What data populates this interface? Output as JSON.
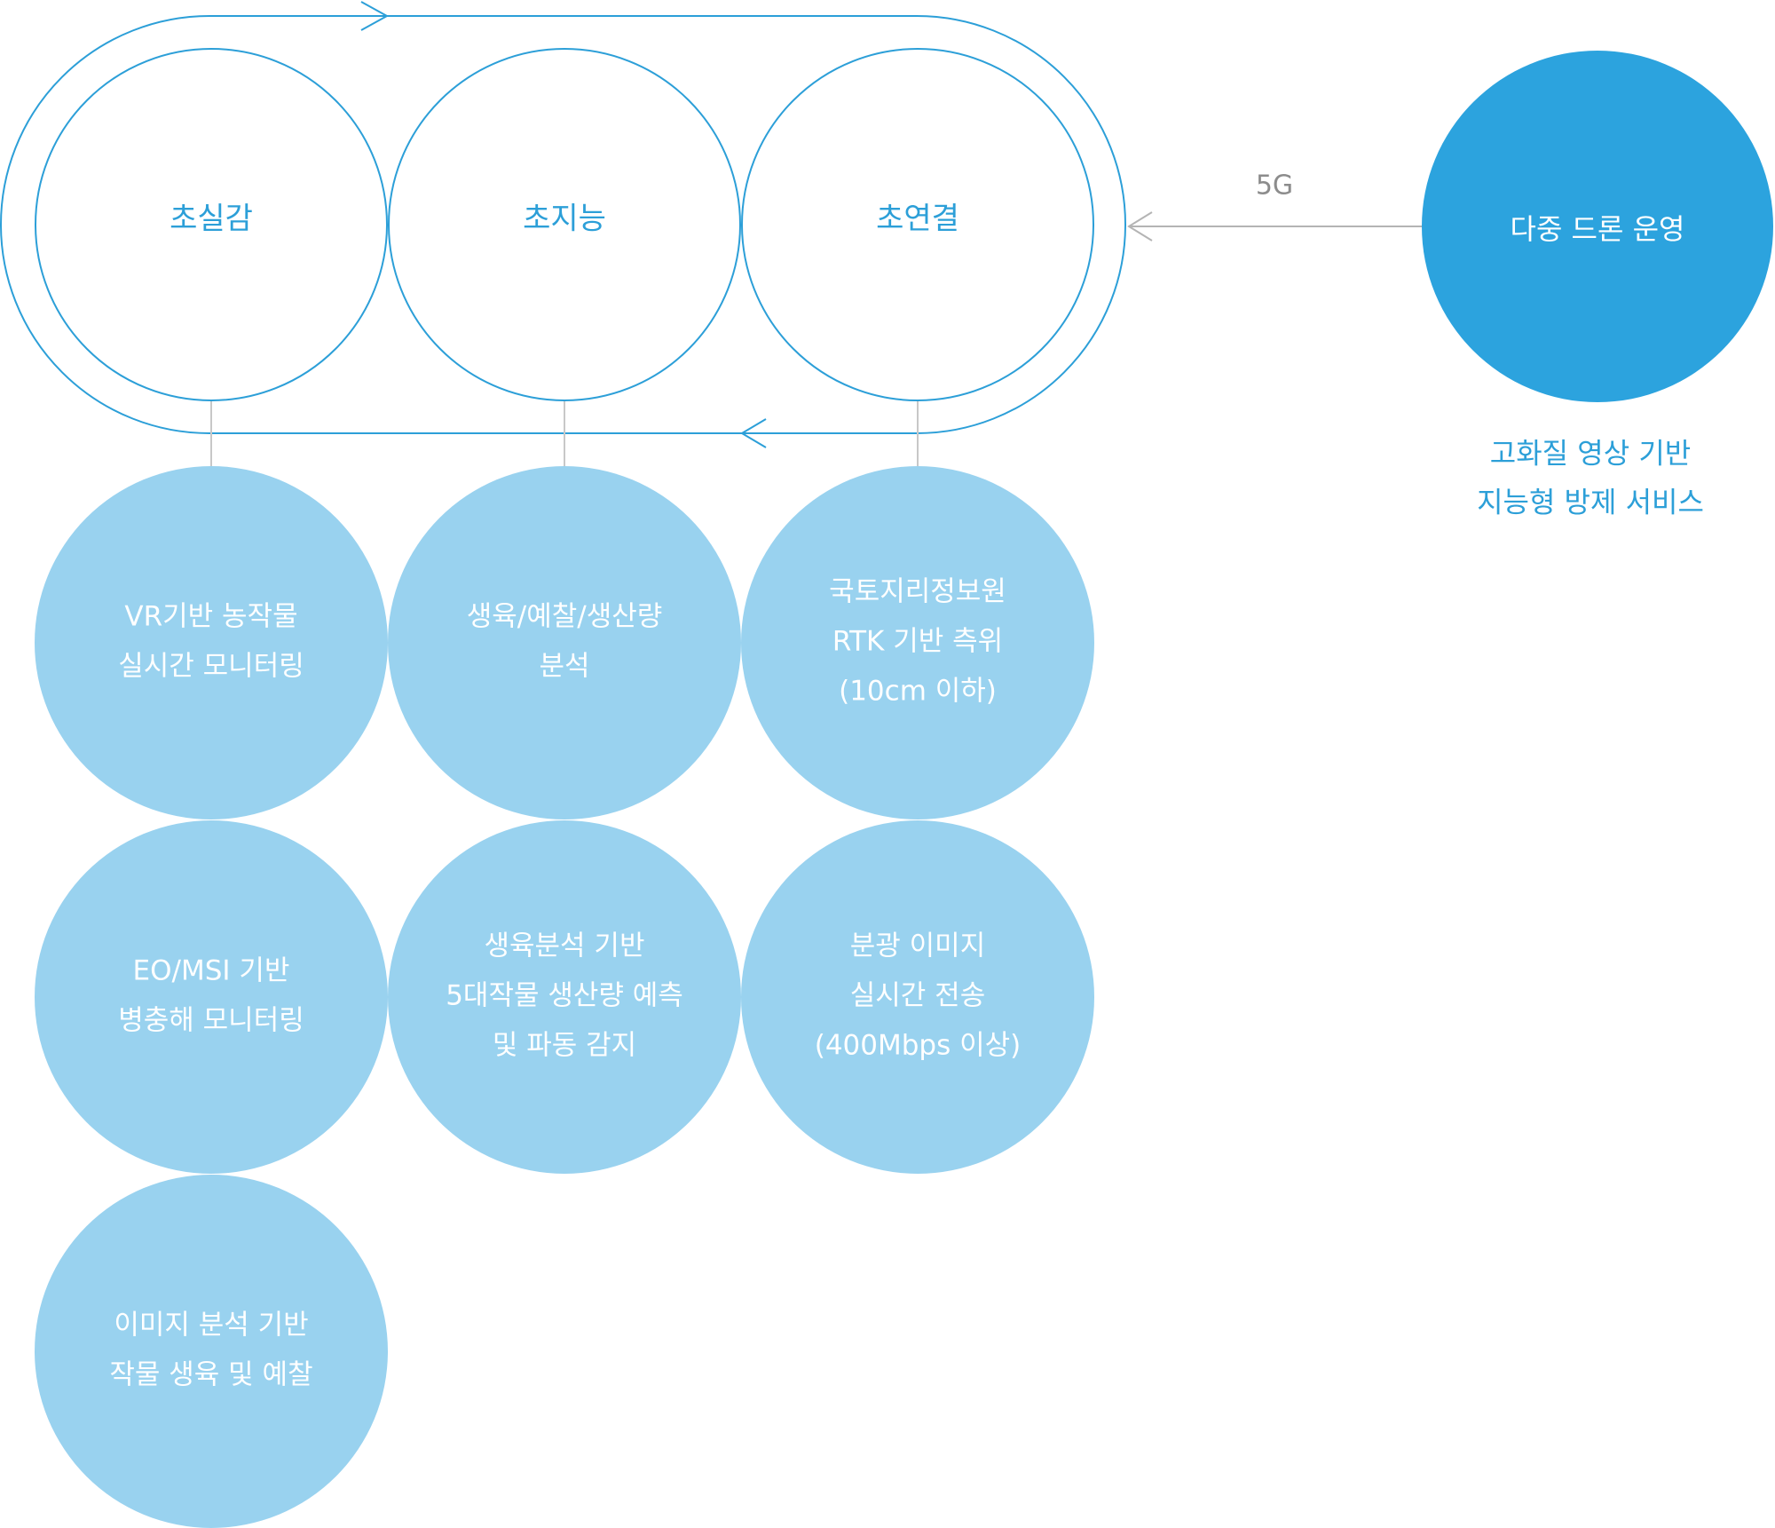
{
  "colors": {
    "outline": "#2c9fd8",
    "feature_fill": "#99d2ef",
    "drone_fill": "#2ca3de",
    "connector": "#c8c8c8",
    "arrow_5g": "#b4b4b4",
    "link_label": "#8c8c8c"
  },
  "pillars": [
    {
      "label": "초실감",
      "features": [
        [
          "VR기반 농작물",
          "실시간 모니터링"
        ],
        [
          "EO/MSI 기반",
          "병충해 모니터링"
        ],
        [
          "이미지 분석 기반",
          "작물 생육 및 예찰"
        ]
      ]
    },
    {
      "label": "초지능",
      "features": [
        [
          "생육/예찰/생산량",
          "분석"
        ],
        [
          "생육분석 기반",
          "5대작물 생산량 예측",
          "및 파동 감지"
        ]
      ]
    },
    {
      "label": "초연결",
      "features": [
        [
          "국토지리정보원",
          "RTK 기반 측위",
          "(10cm 이하)"
        ],
        [
          "분광 이미지",
          "실시간 전송",
          "(400Mbps 이상)"
        ]
      ]
    }
  ],
  "drone": {
    "label": "다중 드론 운영",
    "link_label": "5G",
    "service_lines": [
      "고화질 영상 기반",
      "지능형 방제 서비스"
    ]
  }
}
